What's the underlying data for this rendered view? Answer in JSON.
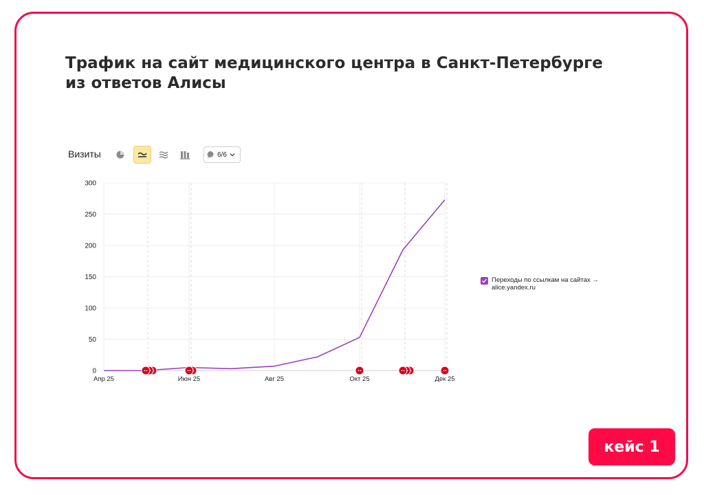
{
  "title": {
    "line1": "Трафик на сайт медицинского центра в Санкт-Петербурге",
    "line2": "из ответов Алисы"
  },
  "toolbar": {
    "metric_label": "Визиты",
    "chart_types": [
      {
        "icon": "pie-chart-icon",
        "active": false
      },
      {
        "icon": "line-chart-icon",
        "active": true
      },
      {
        "icon": "area-chart-icon",
        "active": false
      },
      {
        "icon": "bar-chart-icon",
        "active": false
      }
    ],
    "annotations_count": "6/6"
  },
  "legend": {
    "checked": true,
    "line1": "Переходы по ссылкам на сайтах →",
    "line2": "alice.yandex.ru"
  },
  "badge": {
    "label": "кейс 1"
  },
  "colors": {
    "frame": "#ee0f4b",
    "series": "#9b3fbf",
    "badge": "#ff0a47",
    "annotation": "#d9001b"
  },
  "chart_data": {
    "type": "line",
    "x": [
      "2025-04-01",
      "2025-05-01",
      "2025-06-01",
      "2025-07-01",
      "2025-08-01",
      "2025-09-01",
      "2025-10-01",
      "2025-11-01",
      "2025-12-01"
    ],
    "series": [
      {
        "name": "Переходы по ссылкам на сайтах → alice.yandex.ru",
        "values": [
          0,
          0,
          5,
          3,
          7,
          22,
          53,
          193,
          273
        ]
      }
    ],
    "x_ticks": [
      {
        "date": "2025-04-01",
        "label": "Апр 25"
      },
      {
        "date": "2025-06-01",
        "label": "Июн 25"
      },
      {
        "date": "2025-08-01",
        "label": "Авг 25"
      },
      {
        "date": "2025-10-01",
        "label": "Окт 25"
      },
      {
        "date": "2025-12-01",
        "label": "Дек 25"
      }
    ],
    "y_ticks": [
      0,
      50,
      100,
      150,
      200,
      250,
      300
    ],
    "ylim": [
      0,
      300
    ],
    "grid": true,
    "legend_position": "right",
    "annotations": [
      {
        "date": "2025-05-01",
        "count": 3
      },
      {
        "date": "2025-06-01",
        "count": 2
      },
      {
        "date": "2025-10-01",
        "count": 1
      },
      {
        "date": "2025-11-01",
        "count": 3
      },
      {
        "date": "2025-12-01",
        "count": 1
      }
    ]
  }
}
